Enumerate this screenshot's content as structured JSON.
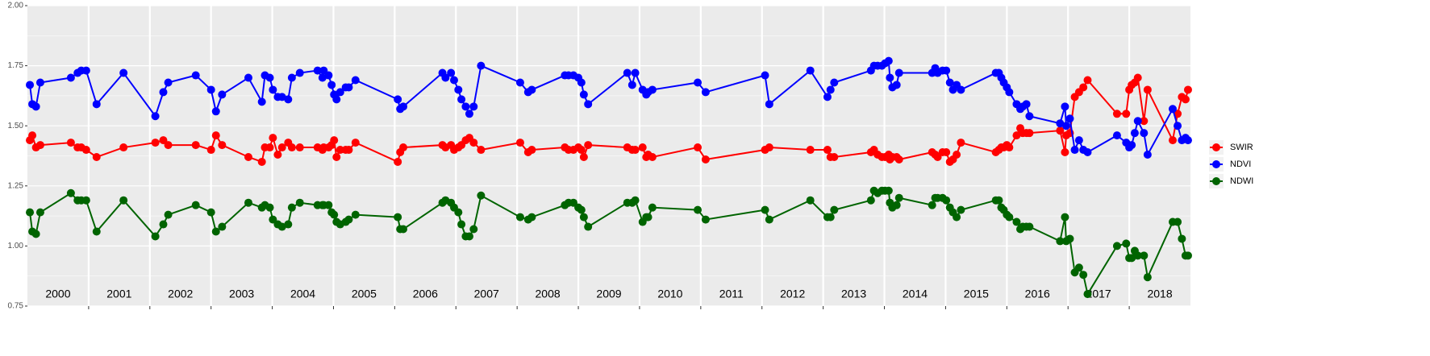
{
  "chart_data": {
    "type": "line",
    "xlim": [
      2000,
      2019
    ],
    "xticks": [
      2001,
      2002,
      2003,
      2004,
      2005,
      2006,
      2007,
      2008,
      2009,
      2010,
      2011,
      2012,
      2013,
      2014,
      2015,
      2016,
      2017,
      2018
    ],
    "year_labels": [
      "2000",
      "2001",
      "2002",
      "2003",
      "2004",
      "2005",
      "2006",
      "2007",
      "2008",
      "2009",
      "2010",
      "2011",
      "2012",
      "2013",
      "2014",
      "2015",
      "2016",
      "2017",
      "2018"
    ],
    "ylim": [
      0.75,
      2.0
    ],
    "yticks": [
      0.75,
      {
        "value": 1.0,
        "label": "1.00"
      },
      1.25,
      {
        "value": 1.5,
        "label": "1.50"
      },
      1.75,
      {
        "value": 2.0,
        "label": "2.00"
      }
    ],
    "grid": true,
    "legend": "right",
    "x": [
      2000.04,
      2000.08,
      2000.14,
      2000.21,
      2000.71,
      2000.82,
      2000.88,
      2000.96,
      2001.13,
      2001.57,
      2002.09,
      2002.22,
      2002.3,
      2002.75,
      2003.0,
      2003.08,
      2003.18,
      2003.61,
      2003.83,
      2003.88,
      2003.96,
      2004.01,
      2004.09,
      2004.16,
      2004.26,
      2004.32,
      2004.45,
      2004.74,
      2004.82,
      2004.84,
      2004.92,
      2004.97,
      2005.01,
      2005.05,
      2005.11,
      2005.2,
      2005.25,
      2005.36,
      2006.05,
      2006.09,
      2006.14,
      2006.78,
      2006.83,
      2006.92,
      2006.97,
      2007.04,
      2007.09,
      2007.16,
      2007.22,
      2007.29,
      2007.41,
      2008.05,
      2008.18,
      2008.24,
      2008.78,
      2008.84,
      2008.92,
      2009.0,
      2009.05,
      2009.09,
      2009.16,
      2009.8,
      2009.88,
      2009.93,
      2010.05,
      2010.11,
      2010.14,
      2010.21,
      2010.95,
      2011.08,
      2012.05,
      2012.12,
      2012.79,
      2013.07,
      2013.12,
      2013.18,
      2013.78,
      2013.83,
      2013.89,
      2013.96,
      2014.01,
      2014.07,
      2014.09,
      2014.13,
      2014.2,
      2014.24,
      2014.78,
      2014.83,
      2014.87,
      2014.95,
      2015.01,
      2015.07,
      2015.12,
      2015.18,
      2015.25,
      2015.82,
      2015.87,
      2015.91,
      2015.95,
      2016.0,
      2016.04,
      2016.16,
      2016.22,
      2016.26,
      2016.32,
      2016.37,
      2016.87,
      2016.95,
      2016.97,
      2017.03,
      2017.11,
      2017.18,
      2017.25,
      2017.32,
      2017.8,
      2017.95,
      2018.0,
      2018.04,
      2018.09,
      2018.14,
      2018.24,
      2018.3,
      2018.71,
      2018.79,
      2018.86,
      2018.92,
      2018.96
    ],
    "series": [
      {
        "name": "SWIR",
        "color": "#ff0000",
        "values": [
          1.44,
          1.46,
          1.41,
          1.42,
          1.43,
          1.41,
          1.41,
          1.4,
          1.37,
          1.41,
          1.43,
          1.44,
          1.42,
          1.42,
          1.4,
          1.46,
          1.42,
          1.37,
          1.35,
          1.41,
          1.41,
          1.45,
          1.38,
          1.41,
          1.43,
          1.41,
          1.41,
          1.41,
          1.4,
          1.41,
          1.41,
          1.42,
          1.44,
          1.37,
          1.4,
          1.4,
          1.4,
          1.43,
          1.35,
          1.39,
          1.41,
          1.42,
          1.41,
          1.42,
          1.4,
          1.41,
          1.42,
          1.44,
          1.45,
          1.43,
          1.4,
          1.43,
          1.39,
          1.4,
          1.41,
          1.4,
          1.4,
          1.41,
          1.4,
          1.37,
          1.42,
          1.41,
          1.4,
          1.4,
          1.41,
          1.37,
          1.38,
          1.37,
          1.41,
          1.36,
          1.4,
          1.41,
          1.4,
          1.4,
          1.37,
          1.37,
          1.39,
          1.4,
          1.38,
          1.37,
          1.37,
          1.38,
          1.36,
          1.37,
          1.37,
          1.36,
          1.39,
          1.38,
          1.37,
          1.39,
          1.39,
          1.35,
          1.36,
          1.38,
          1.43,
          1.39,
          1.4,
          1.41,
          1.41,
          1.42,
          1.41,
          1.46,
          1.49,
          1.47,
          1.47,
          1.47,
          1.48,
          1.39,
          1.46,
          1.47,
          1.62,
          1.64,
          1.66,
          1.69,
          1.55,
          1.55,
          1.65,
          1.67,
          1.68,
          1.7,
          1.52,
          1.65,
          1.44,
          1.55,
          1.62,
          1.61,
          1.65
        ]
      },
      {
        "name": "NDVI",
        "color": "#0000ff",
        "values": [
          1.67,
          1.59,
          1.58,
          1.68,
          1.7,
          1.72,
          1.73,
          1.73,
          1.59,
          1.72,
          1.54,
          1.64,
          1.68,
          1.71,
          1.65,
          1.56,
          1.63,
          1.7,
          1.6,
          1.71,
          1.7,
          1.65,
          1.62,
          1.62,
          1.61,
          1.7,
          1.72,
          1.73,
          1.7,
          1.73,
          1.71,
          1.67,
          1.63,
          1.61,
          1.64,
          1.66,
          1.66,
          1.69,
          1.61,
          1.57,
          1.58,
          1.72,
          1.7,
          1.72,
          1.69,
          1.65,
          1.61,
          1.58,
          1.55,
          1.58,
          1.75,
          1.68,
          1.64,
          1.65,
          1.71,
          1.71,
          1.71,
          1.7,
          1.68,
          1.63,
          1.59,
          1.72,
          1.67,
          1.72,
          1.65,
          1.63,
          1.64,
          1.65,
          1.68,
          1.64,
          1.71,
          1.59,
          1.73,
          1.62,
          1.65,
          1.68,
          1.73,
          1.75,
          1.75,
          1.75,
          1.76,
          1.77,
          1.7,
          1.66,
          1.67,
          1.72,
          1.72,
          1.74,
          1.72,
          1.73,
          1.73,
          1.68,
          1.65,
          1.67,
          1.65,
          1.72,
          1.72,
          1.7,
          1.68,
          1.66,
          1.64,
          1.59,
          1.57,
          1.58,
          1.59,
          1.54,
          1.51,
          1.58,
          1.5,
          1.53,
          1.4,
          1.44,
          1.4,
          1.39,
          1.46,
          1.43,
          1.41,
          1.42,
          1.47,
          1.52,
          1.47,
          1.38,
          1.57,
          1.5,
          1.44,
          1.45,
          1.44
        ]
      },
      {
        "name": "NDWI",
        "color": "#006400",
        "values": [
          1.14,
          1.06,
          1.05,
          1.14,
          1.22,
          1.19,
          1.19,
          1.19,
          1.06,
          1.19,
          1.04,
          1.09,
          1.13,
          1.17,
          1.14,
          1.06,
          1.08,
          1.18,
          1.16,
          1.17,
          1.16,
          1.11,
          1.09,
          1.08,
          1.09,
          1.16,
          1.18,
          1.17,
          1.17,
          1.17,
          1.17,
          1.14,
          1.13,
          1.1,
          1.09,
          1.1,
          1.11,
          1.13,
          1.12,
          1.07,
          1.07,
          1.18,
          1.19,
          1.18,
          1.16,
          1.14,
          1.09,
          1.04,
          1.04,
          1.07,
          1.21,
          1.12,
          1.11,
          1.12,
          1.17,
          1.18,
          1.18,
          1.16,
          1.15,
          1.12,
          1.08,
          1.18,
          1.18,
          1.19,
          1.1,
          1.12,
          1.12,
          1.16,
          1.15,
          1.11,
          1.15,
          1.11,
          1.19,
          1.12,
          1.12,
          1.15,
          1.19,
          1.23,
          1.22,
          1.23,
          1.23,
          1.23,
          1.18,
          1.16,
          1.17,
          1.2,
          1.17,
          1.2,
          1.2,
          1.2,
          1.19,
          1.16,
          1.14,
          1.12,
          1.15,
          1.19,
          1.19,
          1.16,
          1.15,
          1.13,
          1.12,
          1.1,
          1.07,
          1.08,
          1.08,
          1.08,
          1.02,
          1.12,
          1.02,
          1.03,
          0.89,
          0.91,
          0.88,
          0.8,
          1.0,
          1.01,
          0.95,
          0.95,
          0.98,
          0.96,
          0.96,
          0.87,
          1.1,
          1.1,
          1.03,
          0.96,
          0.96
        ]
      }
    ]
  }
}
